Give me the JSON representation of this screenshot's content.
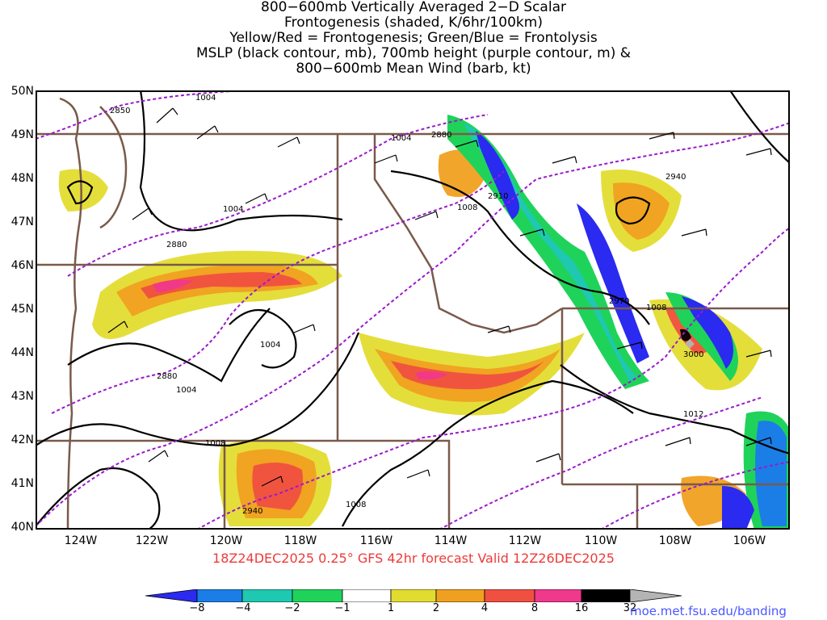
{
  "title": {
    "line1": "800−600mb Vertically Averaged 2−D Scalar",
    "line2": "Frontogenesis (shaded, K/6hr/100km)",
    "line3": "Yellow/Red = Frontogenesis;  Green/Blue = Frontolysis",
    "line4": "MSLP (black contour, mb), 700mb height (purple contour, m) &",
    "line5": "800−600mb Mean Wind (barb, kt)"
  },
  "latitude_labels": [
    "50N",
    "49N",
    "48N",
    "47N",
    "46N",
    "45N",
    "44N",
    "43N",
    "42N",
    "41N",
    "40N"
  ],
  "longitude_labels": [
    "124W",
    "122W",
    "120W",
    "118W",
    "116W",
    "114W",
    "112W",
    "110W",
    "108W",
    "106W"
  ],
  "contour_labels": {
    "mslp": [
      "1004",
      "1004",
      "1004",
      "1004",
      "1004",
      "1008",
      "1008",
      "1008",
      "1008",
      "1012"
    ],
    "height": [
      "2850",
      "2880",
      "2880",
      "2880",
      "2910",
      "2940",
      "2940",
      "2970",
      "3000"
    ]
  },
  "forecast_label": "18Z24DEC2025 0.25° GFS 42hr forecast Valid 12Z26DEC2025",
  "colorbar": {
    "labels": [
      "−8",
      "−4",
      "−2",
      "−1",
      "1",
      "2",
      "4",
      "8",
      "16",
      "32"
    ],
    "colors": [
      "#2a2af0",
      "#1a7ee6",
      "#1fc8b0",
      "#1fd35a",
      "#1ed81e",
      "#ffffff",
      "#e3dc30",
      "#f0a020",
      "#f05040",
      "#f0388c",
      "#000000",
      "#b4b4b4"
    ]
  },
  "colors": {
    "mslp_contour": "#000000",
    "height_contour": "#9a1acc",
    "borders": "#7a5a4a",
    "forecast_text": "#ee3a3a",
    "credit_text": "#4a57ff"
  },
  "credit": "moe.met.fsu.edu/banding"
}
